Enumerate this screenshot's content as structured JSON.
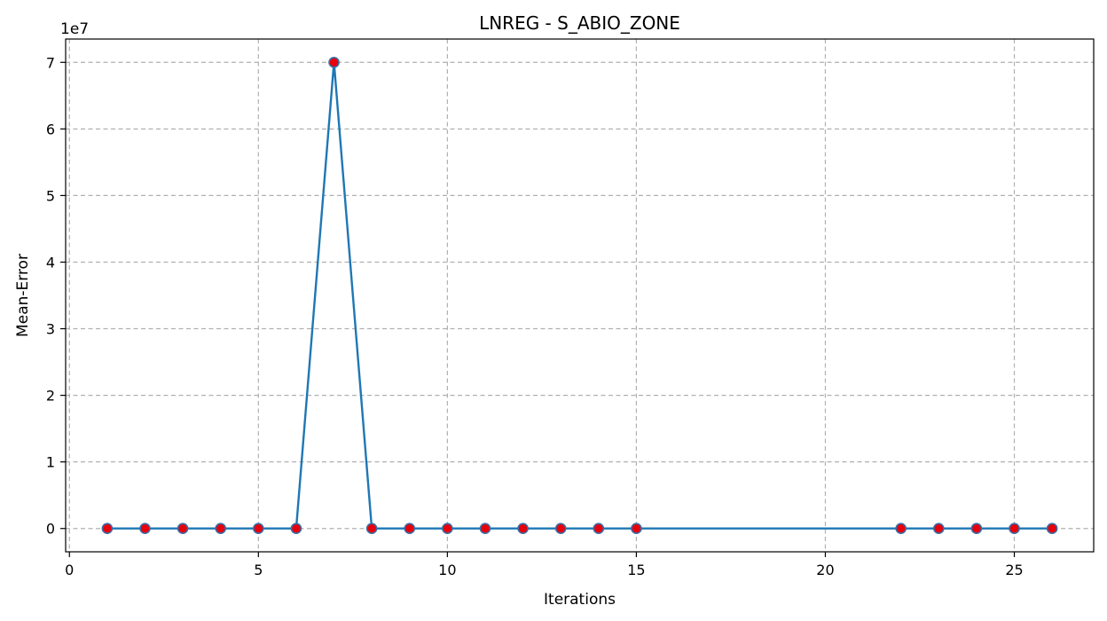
{
  "chart_data": {
    "type": "line",
    "title": "LNREG - S_ABIO_ZONE",
    "xlabel": "Iterations",
    "ylabel": "Mean-Error",
    "y_offset_label": "1e7",
    "xlim": [
      -0.1,
      27.1
    ],
    "ylim": [
      -3500000,
      73500000
    ],
    "x_ticks": [
      0,
      5,
      10,
      15,
      20,
      25
    ],
    "y_ticks": [
      0,
      10000000,
      20000000,
      30000000,
      40000000,
      50000000,
      60000000,
      70000000
    ],
    "y_tick_labels": [
      "0",
      "1",
      "2",
      "3",
      "4",
      "5",
      "6",
      "7"
    ],
    "grid": true,
    "line_color": "#1f77b4",
    "marker_face_color": "#e8000b",
    "marker_edge_color": "#3a6ea5",
    "series": [
      {
        "x": [
          1,
          2,
          3,
          4,
          5,
          6,
          7,
          8,
          9,
          10,
          11,
          12,
          13,
          14,
          15,
          22,
          23,
          24,
          25,
          26
        ],
        "y": [
          0,
          0,
          0,
          0,
          0,
          0,
          70000000,
          0,
          0,
          0,
          0,
          0,
          0,
          0,
          0,
          0,
          0,
          0,
          0,
          0
        ]
      }
    ]
  }
}
